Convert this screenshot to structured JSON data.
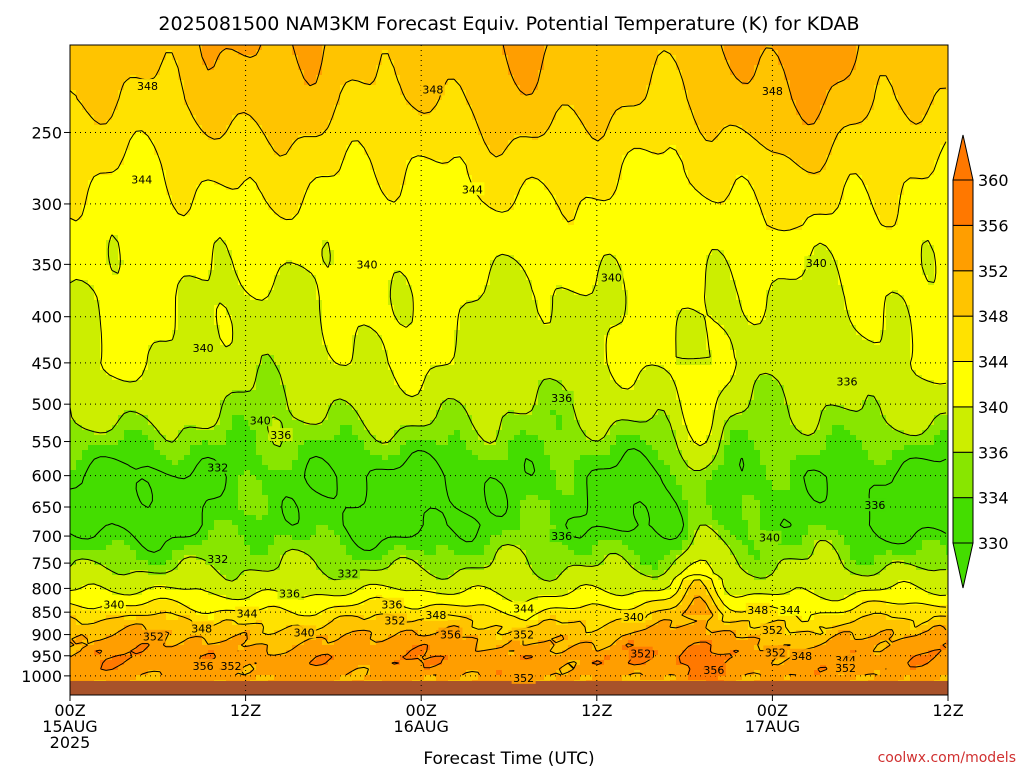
{
  "chart_data": {
    "type": "heatmap",
    "title": "2025081500 NAM3KM Forecast Equiv. Potential Temperature (K) for KDAB",
    "xlabel": "Forecast Time (UTC)",
    "ylabel": "",
    "y_scale": "log",
    "y_reversed": true,
    "ylim": [
      1050,
      200
    ],
    "xlim": [
      0,
      60
    ],
    "y_ticks": [
      250,
      300,
      350,
      400,
      450,
      500,
      550,
      600,
      650,
      700,
      750,
      800,
      850,
      900,
      950,
      1000
    ],
    "x_ticks": [
      {
        "x": 0,
        "lines": [
          "00Z",
          "15AUG",
          "2025"
        ]
      },
      {
        "x": 12,
        "lines": [
          "12Z"
        ]
      },
      {
        "x": 24,
        "lines": [
          "00Z",
          "16AUG"
        ]
      },
      {
        "x": 36,
        "lines": [
          "12Z"
        ]
      },
      {
        "x": 48,
        "lines": [
          "00Z",
          "17AUG"
        ]
      },
      {
        "x": 60,
        "lines": [
          "12Z"
        ]
      }
    ],
    "grid": true,
    "colorbar": {
      "ticks": [
        330,
        334,
        336,
        340,
        344,
        348,
        352,
        356,
        360
      ],
      "colors": [
        "#44dd00",
        "#88e600",
        "#ccee00",
        "#ffff00",
        "#ffe200",
        "#ffc400",
        "#ff9e00",
        "#ff7800"
      ]
    },
    "field_profile": [
      {
        "p": 200,
        "v": 351
      },
      {
        "p": 230,
        "v": 349
      },
      {
        "p": 270,
        "v": 345
      },
      {
        "p": 320,
        "v": 342
      },
      {
        "p": 380,
        "v": 340
      },
      {
        "p": 450,
        "v": 339
      },
      {
        "p": 520,
        "v": 336
      },
      {
        "p": 600,
        "v": 332
      },
      {
        "p": 680,
        "v": 332
      },
      {
        "p": 760,
        "v": 336
      },
      {
        "p": 800,
        "v": 339
      },
      {
        "p": 840,
        "v": 344
      },
      {
        "p": 870,
        "v": 348
      },
      {
        "p": 910,
        "v": 352
      },
      {
        "p": 960,
        "v": 355
      },
      {
        "p": 1000,
        "v": 353
      },
      {
        "p": 1050,
        "v": 352
      }
    ],
    "surface_pressure": 1013,
    "contour_labels": [
      {
        "text": "348",
        "x": 5.3,
        "p": 222
      },
      {
        "text": "348",
        "x": 24.8,
        "p": 224
      },
      {
        "text": "348",
        "x": 48.0,
        "p": 225
      },
      {
        "text": "344",
        "x": 4.9,
        "p": 282
      },
      {
        "text": "344",
        "x": 27.5,
        "p": 289
      },
      {
        "text": "340",
        "x": 20.3,
        "p": 350
      },
      {
        "text": "340",
        "x": 37.0,
        "p": 362
      },
      {
        "text": "340",
        "x": 51.0,
        "p": 349
      },
      {
        "text": "340",
        "x": 9.1,
        "p": 433
      },
      {
        "text": "336",
        "x": 33.6,
        "p": 492
      },
      {
        "text": "336",
        "x": 53.1,
        "p": 472
      },
      {
        "text": "340",
        "x": 13.0,
        "p": 521
      },
      {
        "text": "336",
        "x": 14.4,
        "p": 541
      },
      {
        "text": "332",
        "x": 10.1,
        "p": 588
      },
      {
        "text": "336",
        "x": 55.0,
        "p": 647
      },
      {
        "text": "336",
        "x": 33.6,
        "p": 700
      },
      {
        "text": "340",
        "x": 47.8,
        "p": 703
      },
      {
        "text": "332",
        "x": 10.1,
        "p": 742
      },
      {
        "text": "332",
        "x": 19.0,
        "p": 770
      },
      {
        "text": "336",
        "x": 15.0,
        "p": 810
      },
      {
        "text": "340",
        "x": 3.0,
        "p": 834
      },
      {
        "text": "336",
        "x": 22.0,
        "p": 834
      },
      {
        "text": "344",
        "x": 12.1,
        "p": 853
      },
      {
        "text": "352",
        "x": 22.2,
        "p": 868
      },
      {
        "text": "348",
        "x": 25.0,
        "p": 856
      },
      {
        "text": "344",
        "x": 31.0,
        "p": 842
      },
      {
        "text": "340",
        "x": 38.5,
        "p": 860
      },
      {
        "text": "348",
        "x": 47.0,
        "p": 845
      },
      {
        "text": "344",
        "x": 49.2,
        "p": 845
      },
      {
        "text": "348",
        "x": 9.0,
        "p": 886
      },
      {
        "text": "340",
        "x": 16.0,
        "p": 895
      },
      {
        "text": "356",
        "x": 26.0,
        "p": 900
      },
      {
        "text": "352",
        "x": 31.0,
        "p": 900
      },
      {
        "text": "352",
        "x": 5.7,
        "p": 905
      },
      {
        "text": "352",
        "x": 48.0,
        "p": 890
      },
      {
        "text": "352",
        "x": 39.0,
        "p": 945
      },
      {
        "text": "352",
        "x": 48.2,
        "p": 942
      },
      {
        "text": "348",
        "x": 50.0,
        "p": 950
      },
      {
        "text": "344",
        "x": 53.0,
        "p": 960
      },
      {
        "text": "356",
        "x": 9.1,
        "p": 975
      },
      {
        "text": "352",
        "x": 11.0,
        "p": 975
      },
      {
        "text": "356",
        "x": 44.0,
        "p": 985
      },
      {
        "text": "352",
        "x": 53.0,
        "p": 980
      },
      {
        "text": "352",
        "x": 31.0,
        "p": 1005
      }
    ]
  },
  "credit": "coolwx.com/models"
}
